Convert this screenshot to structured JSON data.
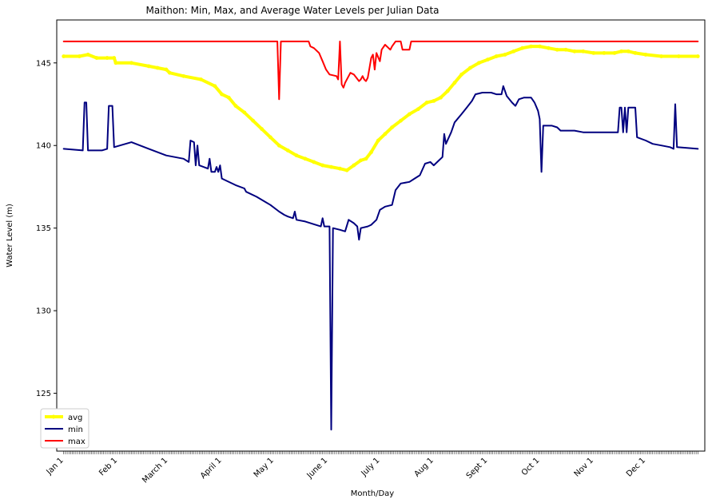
{
  "chart_data": {
    "type": "line",
    "title": "Maithon: Min, Max, and Average Water Levels per Julian Data",
    "xlabel": "Month/Day",
    "ylabel": "Water Level (m)",
    "x_ticks": [
      {
        "day": 1,
        "label": "Jan 1"
      },
      {
        "day": 32,
        "label": "Feb 1"
      },
      {
        "day": 61,
        "label": "March 1"
      },
      {
        "day": 92,
        "label": "April 1"
      },
      {
        "day": 122,
        "label": "May 1"
      },
      {
        "day": 153,
        "label": "June 1"
      },
      {
        "day": 183,
        "label": "July 1"
      },
      {
        "day": 214,
        "label": "Aug 1"
      },
      {
        "day": 245,
        "label": "Sept 1"
      },
      {
        "day": 275,
        "label": "Oct 1"
      },
      {
        "day": 306,
        "label": "Nov 1"
      },
      {
        "day": 336,
        "label": "Dec 1"
      }
    ],
    "xlim": [
      -3,
      370
    ],
    "y_ticks": [
      125,
      130,
      135,
      140,
      145
    ],
    "ylim": [
      121.5,
      147.6
    ],
    "legend": "lower-left",
    "series": [
      {
        "name": "avg",
        "color": "#ffff00",
        "line_width": 4,
        "marker": "circle",
        "points": [
          [
            1,
            145.4
          ],
          [
            10,
            145.4
          ],
          [
            15,
            145.5
          ],
          [
            20,
            145.3
          ],
          [
            26,
            145.3
          ],
          [
            30,
            145.3
          ],
          [
            31,
            145.0
          ],
          [
            40,
            145.0
          ],
          [
            50,
            144.8
          ],
          [
            55,
            144.7
          ],
          [
            60,
            144.6
          ],
          [
            62,
            144.4
          ],
          [
            70,
            144.2
          ],
          [
            80,
            144.0
          ],
          [
            88,
            143.6
          ],
          [
            92,
            143.1
          ],
          [
            96,
            142.9
          ],
          [
            100,
            142.4
          ],
          [
            105,
            142.0
          ],
          [
            110,
            141.5
          ],
          [
            115,
            141.0
          ],
          [
            120,
            140.5
          ],
          [
            125,
            140.0
          ],
          [
            130,
            139.7
          ],
          [
            135,
            139.4
          ],
          [
            140,
            139.2
          ],
          [
            145,
            139.0
          ],
          [
            150,
            138.8
          ],
          [
            155,
            138.7
          ],
          [
            160,
            138.6
          ],
          [
            164,
            138.5
          ],
          [
            168,
            138.8
          ],
          [
            172,
            139.1
          ],
          [
            175,
            139.2
          ],
          [
            178,
            139.6
          ],
          [
            182,
            140.3
          ],
          [
            186,
            140.7
          ],
          [
            190,
            141.1
          ],
          [
            195,
            141.5
          ],
          [
            200,
            141.9
          ],
          [
            205,
            142.2
          ],
          [
            210,
            142.6
          ],
          [
            214,
            142.7
          ],
          [
            218,
            142.9
          ],
          [
            222,
            143.3
          ],
          [
            226,
            143.8
          ],
          [
            230,
            144.3
          ],
          [
            235,
            144.7
          ],
          [
            240,
            145.0
          ],
          [
            245,
            145.2
          ],
          [
            250,
            145.4
          ],
          [
            255,
            145.5
          ],
          [
            260,
            145.7
          ],
          [
            265,
            145.9
          ],
          [
            270,
            146.0
          ],
          [
            275,
            146.0
          ],
          [
            280,
            145.9
          ],
          [
            285,
            145.8
          ],
          [
            290,
            145.8
          ],
          [
            295,
            145.7
          ],
          [
            300,
            145.7
          ],
          [
            306,
            145.6
          ],
          [
            312,
            145.6
          ],
          [
            318,
            145.6
          ],
          [
            322,
            145.7
          ],
          [
            326,
            145.7
          ],
          [
            330,
            145.6
          ],
          [
            336,
            145.5
          ],
          [
            345,
            145.4
          ],
          [
            355,
            145.4
          ],
          [
            366,
            145.4
          ]
        ]
      },
      {
        "name": "min",
        "color": "#00007f",
        "line_width": 2,
        "points": [
          [
            1,
            139.8
          ],
          [
            12,
            139.7
          ],
          [
            13,
            142.6
          ],
          [
            14,
            142.6
          ],
          [
            15,
            139.7
          ],
          [
            23,
            139.7
          ],
          [
            26,
            139.8
          ],
          [
            27,
            142.4
          ],
          [
            29,
            142.4
          ],
          [
            30,
            139.9
          ],
          [
            40,
            140.2
          ],
          [
            50,
            139.8
          ],
          [
            60,
            139.4
          ],
          [
            70,
            139.2
          ],
          [
            73,
            139.0
          ],
          [
            74,
            140.3
          ],
          [
            76,
            140.2
          ],
          [
            77,
            138.8
          ],
          [
            78,
            140.0
          ],
          [
            79,
            138.8
          ],
          [
            84,
            138.6
          ],
          [
            85,
            139.2
          ],
          [
            86,
            138.4
          ],
          [
            88,
            138.4
          ],
          [
            89,
            138.7
          ],
          [
            90,
            138.4
          ],
          [
            91,
            138.8
          ],
          [
            92,
            138.0
          ],
          [
            100,
            137.6
          ],
          [
            105,
            137.4
          ],
          [
            106,
            137.2
          ],
          [
            112,
            136.9
          ],
          [
            120,
            136.4
          ],
          [
            125,
            136.0
          ],
          [
            128,
            135.8
          ],
          [
            130,
            135.7
          ],
          [
            133,
            135.6
          ],
          [
            134,
            136.0
          ],
          [
            135,
            135.5
          ],
          [
            140,
            135.4
          ],
          [
            146,
            135.2
          ],
          [
            149,
            135.1
          ],
          [
            150,
            135.6
          ],
          [
            151,
            135.1
          ],
          [
            154,
            135.1
          ],
          [
            155,
            122.8
          ],
          [
            156,
            135.0
          ],
          [
            160,
            134.9
          ],
          [
            163,
            134.8
          ],
          [
            165,
            135.5
          ],
          [
            168,
            135.3
          ],
          [
            170,
            135.1
          ],
          [
            171,
            134.3
          ],
          [
            172,
            135.0
          ],
          [
            176,
            135.1
          ],
          [
            178,
            135.2
          ],
          [
            181,
            135.5
          ],
          [
            183,
            136.1
          ],
          [
            186,
            136.3
          ],
          [
            190,
            136.4
          ],
          [
            192,
            137.3
          ],
          [
            195,
            137.7
          ],
          [
            200,
            137.8
          ],
          [
            203,
            138.0
          ],
          [
            206,
            138.2
          ],
          [
            209,
            138.9
          ],
          [
            212,
            139.0
          ],
          [
            214,
            138.8
          ],
          [
            216,
            139.0
          ],
          [
            219,
            139.3
          ],
          [
            220,
            140.7
          ],
          [
            221,
            140.1
          ],
          [
            224,
            140.8
          ],
          [
            226,
            141.4
          ],
          [
            230,
            141.9
          ],
          [
            233,
            142.3
          ],
          [
            236,
            142.7
          ],
          [
            238,
            143.1
          ],
          [
            242,
            143.2
          ],
          [
            247,
            143.2
          ],
          [
            250,
            143.1
          ],
          [
            253,
            143.1
          ],
          [
            254,
            143.6
          ],
          [
            256,
            143.0
          ],
          [
            259,
            142.6
          ],
          [
            261,
            142.4
          ],
          [
            263,
            142.8
          ],
          [
            266,
            142.9
          ],
          [
            270,
            142.9
          ],
          [
            272,
            142.6
          ],
          [
            274,
            142.1
          ],
          [
            275,
            141.6
          ],
          [
            276,
            138.4
          ],
          [
            277,
            141.2
          ],
          [
            282,
            141.2
          ],
          [
            285,
            141.1
          ],
          [
            287,
            140.9
          ],
          [
            295,
            140.9
          ],
          [
            300,
            140.8
          ],
          [
            310,
            140.8
          ],
          [
            320,
            140.8
          ],
          [
            321,
            142.3
          ],
          [
            322,
            142.3
          ],
          [
            323,
            140.8
          ],
          [
            324,
            142.3
          ],
          [
            325,
            140.8
          ],
          [
            326,
            142.3
          ],
          [
            330,
            142.3
          ],
          [
            331,
            140.5
          ],
          [
            336,
            140.3
          ],
          [
            340,
            140.1
          ],
          [
            345,
            140.0
          ],
          [
            350,
            139.9
          ],
          [
            352,
            139.8
          ],
          [
            353,
            142.5
          ],
          [
            354,
            139.9
          ],
          [
            366,
            139.8
          ]
        ]
      },
      {
        "name": "max",
        "color": "#ff0000",
        "line_width": 2,
        "points": [
          [
            1,
            146.3
          ],
          [
            124,
            146.3
          ],
          [
            125,
            142.8
          ],
          [
            126,
            146.3
          ],
          [
            141,
            146.3
          ],
          [
            142,
            146.3
          ],
          [
            143,
            146.0
          ],
          [
            145,
            145.9
          ],
          [
            148,
            145.6
          ],
          [
            150,
            145.1
          ],
          [
            152,
            144.6
          ],
          [
            154,
            144.3
          ],
          [
            158,
            144.2
          ],
          [
            159,
            144.0
          ],
          [
            160,
            146.3
          ],
          [
            161,
            143.7
          ],
          [
            162,
            143.5
          ],
          [
            163,
            143.8
          ],
          [
            165,
            144.2
          ],
          [
            166,
            144.4
          ],
          [
            168,
            144.3
          ],
          [
            171,
            143.9
          ],
          [
            172,
            144.0
          ],
          [
            173,
            144.2
          ],
          [
            174,
            144.0
          ],
          [
            175,
            143.9
          ],
          [
            176,
            144.1
          ],
          [
            177,
            144.7
          ],
          [
            178,
            145.3
          ],
          [
            179,
            145.5
          ],
          [
            180,
            144.6
          ],
          [
            181,
            145.6
          ],
          [
            183,
            145.1
          ],
          [
            184,
            145.8
          ],
          [
            186,
            146.1
          ],
          [
            188,
            145.9
          ],
          [
            189,
            145.8
          ],
          [
            190,
            146.0
          ],
          [
            192,
            146.3
          ],
          [
            195,
            146.3
          ],
          [
            196,
            145.8
          ],
          [
            200,
            145.8
          ],
          [
            201,
            146.3
          ],
          [
            366,
            146.3
          ]
        ]
      }
    ]
  }
}
